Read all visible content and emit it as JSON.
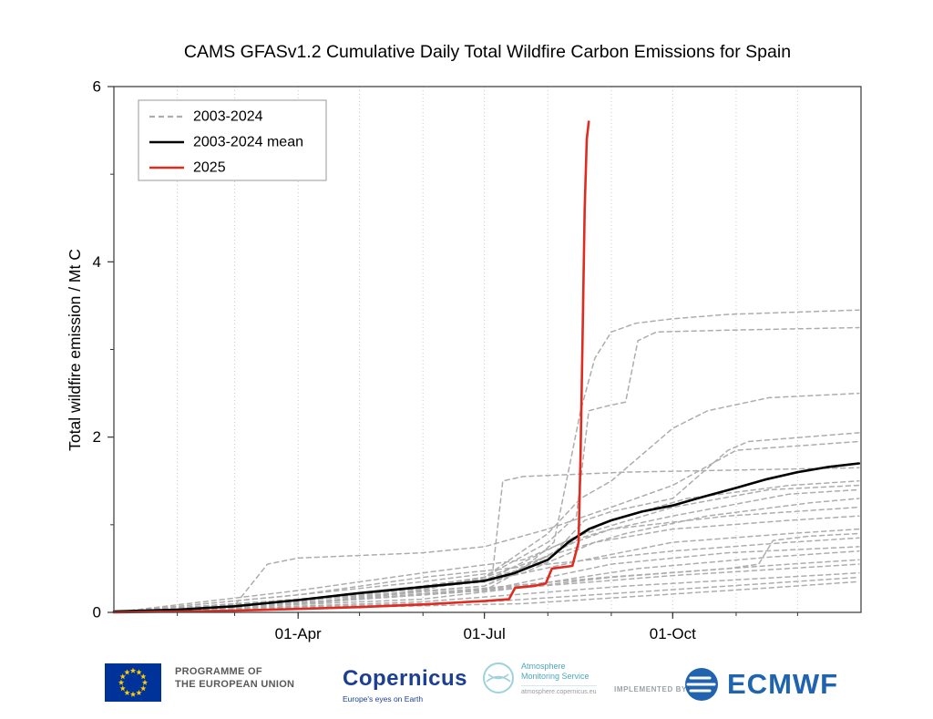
{
  "title": "CAMS GFASv1.2 Cumulative Daily Total Wildfire Carbon Emissions for Spain",
  "colors": {
    "gray_member": "#adadad",
    "mean_black": "#000000",
    "red_2025": "#e02b20",
    "grid": "#c9c9c9",
    "frame": "#444444",
    "eu_blue": "#003399",
    "eu_star_yellow": "#ffcc00",
    "copernicus_blue": "#1c3f94",
    "ams_teal": "#4ba7c0",
    "ecmwf_blue": "#2063af"
  },
  "chart_data": {
    "type": "line",
    "title": "CAMS GFASv1.2 Cumulative Daily Total Wildfire Carbon Emissions for Spain",
    "xlabel": "",
    "ylabel": "Total wildfire emission / Mt C",
    "ylim": [
      0,
      6
    ],
    "xlim_days": [
      0,
      365
    ],
    "yticks": [
      0,
      2,
      4,
      6
    ],
    "ytick_labels": [
      "0",
      "2",
      "4",
      "6"
    ],
    "yticks_minor": [
      1,
      3,
      5
    ],
    "xticks": [
      {
        "day": 90,
        "label": "01-Apr"
      },
      {
        "day": 181,
        "label": "01-Jul"
      },
      {
        "day": 273,
        "label": "01-Oct"
      }
    ],
    "month_start_days": [
      31,
      59,
      90,
      120,
      151,
      181,
      212,
      243,
      273,
      304,
      334
    ],
    "grid": "dotted vertical lines at each month start",
    "legend_position": "upper-left",
    "legend": [
      {
        "label": "2003-2024",
        "color": "#adadad",
        "dash": true,
        "width": 2.2
      },
      {
        "label": "2003-2024 mean",
        "color": "#000000",
        "dash": false,
        "width": 2.6
      },
      {
        "label": "2025",
        "color": "#e02b20",
        "dash": false,
        "width": 2.6
      }
    ],
    "series": [
      {
        "name": "member-1",
        "group": "2003-2024",
        "color": "#adadad",
        "dash": true,
        "width": 1.5,
        "points": [
          [
            0,
            0
          ],
          [
            60,
            0.05
          ],
          [
            90,
            0.12
          ],
          [
            120,
            0.2
          ],
          [
            150,
            0.28
          ],
          [
            181,
            0.38
          ],
          [
            200,
            0.5
          ],
          [
            215,
            0.8
          ],
          [
            222,
            1.6
          ],
          [
            228,
            2.3
          ],
          [
            235,
            2.9
          ],
          [
            243,
            3.2
          ],
          [
            255,
            3.3
          ],
          [
            273,
            3.35
          ],
          [
            300,
            3.4
          ],
          [
            364,
            3.45
          ]
        ]
      },
      {
        "name": "member-2",
        "group": "2003-2024",
        "color": "#adadad",
        "dash": true,
        "width": 1.5,
        "points": [
          [
            0,
            0
          ],
          [
            90,
            0.1
          ],
          [
            150,
            0.25
          ],
          [
            181,
            0.4
          ],
          [
            212,
            0.8
          ],
          [
            226,
            1.1
          ],
          [
            232,
            2.3
          ],
          [
            240,
            2.35
          ],
          [
            250,
            2.4
          ],
          [
            256,
            3.1
          ],
          [
            265,
            3.2
          ],
          [
            300,
            3.22
          ],
          [
            364,
            3.25
          ]
        ]
      },
      {
        "name": "member-3",
        "group": "2003-2024",
        "color": "#adadad",
        "dash": true,
        "width": 1.5,
        "points": [
          [
            0,
            0
          ],
          [
            90,
            0.15
          ],
          [
            151,
            0.3
          ],
          [
            181,
            0.4
          ],
          [
            212,
            0.9
          ],
          [
            228,
            1.3
          ],
          [
            243,
            1.5
          ],
          [
            273,
            2.1
          ],
          [
            290,
            2.3
          ],
          [
            320,
            2.45
          ],
          [
            364,
            2.5
          ]
        ]
      },
      {
        "name": "member-4",
        "group": "2003-2024",
        "color": "#adadad",
        "dash": true,
        "width": 1.5,
        "points": [
          [
            0,
            0
          ],
          [
            90,
            0.1
          ],
          [
            181,
            0.3
          ],
          [
            212,
            0.6
          ],
          [
            230,
            1.05
          ],
          [
            243,
            1.15
          ],
          [
            273,
            1.3
          ],
          [
            300,
            1.85
          ],
          [
            310,
            1.95
          ],
          [
            364,
            2.05
          ]
        ]
      },
      {
        "name": "member-5",
        "group": "2003-2024",
        "color": "#adadad",
        "dash": true,
        "width": 1.5,
        "points": [
          [
            0,
            0
          ],
          [
            59,
            0.08
          ],
          [
            75,
            0.55
          ],
          [
            90,
            0.62
          ],
          [
            151,
            0.68
          ],
          [
            181,
            0.75
          ],
          [
            212,
            0.95
          ],
          [
            243,
            1.2
          ],
          [
            273,
            1.45
          ],
          [
            304,
            1.85
          ],
          [
            364,
            1.95
          ]
        ]
      },
      {
        "name": "member-6",
        "group": "2003-2024",
        "color": "#adadad",
        "dash": true,
        "width": 1.5,
        "points": [
          [
            0,
            0
          ],
          [
            90,
            0.2
          ],
          [
            151,
            0.35
          ],
          [
            185,
            0.45
          ],
          [
            190,
            1.5
          ],
          [
            200,
            1.55
          ],
          [
            250,
            1.6
          ],
          [
            364,
            1.65
          ]
        ]
      },
      {
        "name": "member-7",
        "group": "2003-2024",
        "color": "#adadad",
        "dash": true,
        "width": 1.5,
        "points": [
          [
            0,
            0
          ],
          [
            120,
            0.2
          ],
          [
            181,
            0.35
          ],
          [
            215,
            0.75
          ],
          [
            243,
            1.05
          ],
          [
            280,
            1.3
          ],
          [
            330,
            1.45
          ],
          [
            364,
            1.5
          ]
        ]
      },
      {
        "name": "member-8",
        "group": "2003-2024",
        "color": "#adadad",
        "dash": true,
        "width": 1.5,
        "points": [
          [
            0,
            0
          ],
          [
            90,
            0.25
          ],
          [
            151,
            0.45
          ],
          [
            200,
            0.6
          ],
          [
            230,
            0.9
          ],
          [
            273,
            1.2
          ],
          [
            320,
            1.4
          ],
          [
            364,
            1.45
          ]
        ]
      },
      {
        "name": "member-9",
        "group": "2003-2024",
        "color": "#adadad",
        "dash": true,
        "width": 1.5,
        "points": [
          [
            0,
            0
          ],
          [
            100,
            0.15
          ],
          [
            181,
            0.3
          ],
          [
            225,
            0.8
          ],
          [
            243,
            0.95
          ],
          [
            273,
            1.1
          ],
          [
            330,
            1.35
          ],
          [
            364,
            1.4
          ]
        ]
      },
      {
        "name": "member-10",
        "group": "2003-2024",
        "color": "#adadad",
        "dash": true,
        "width": 1.5,
        "points": [
          [
            0,
            0
          ],
          [
            120,
            0.2
          ],
          [
            181,
            0.4
          ],
          [
            220,
            0.7
          ],
          [
            250,
            0.9
          ],
          [
            290,
            1.1
          ],
          [
            340,
            1.25
          ],
          [
            364,
            1.3
          ]
        ]
      },
      {
        "name": "member-11",
        "group": "2003-2024",
        "color": "#adadad",
        "dash": true,
        "width": 1.5,
        "points": [
          [
            0,
            0
          ],
          [
            90,
            0.1
          ],
          [
            181,
            0.25
          ],
          [
            228,
            0.85
          ],
          [
            243,
            0.95
          ],
          [
            300,
            1.1
          ],
          [
            364,
            1.2
          ]
        ]
      },
      {
        "name": "member-12",
        "group": "2003-2024",
        "color": "#adadad",
        "dash": true,
        "width": 1.5,
        "points": [
          [
            0,
            0
          ],
          [
            120,
            0.15
          ],
          [
            200,
            0.45
          ],
          [
            235,
            0.8
          ],
          [
            273,
            0.95
          ],
          [
            330,
            1.05
          ],
          [
            364,
            1.1
          ]
        ]
      },
      {
        "name": "member-13",
        "group": "2003-2024",
        "color": "#adadad",
        "dash": true,
        "width": 1.5,
        "points": [
          [
            0,
            0
          ],
          [
            90,
            0.15
          ],
          [
            181,
            0.35
          ],
          [
            230,
            0.6
          ],
          [
            273,
            0.8
          ],
          [
            330,
            0.9
          ],
          [
            364,
            0.95
          ]
        ]
      },
      {
        "name": "member-14",
        "group": "2003-2024",
        "color": "#adadad",
        "dash": true,
        "width": 1.5,
        "points": [
          [
            0,
            0
          ],
          [
            150,
            0.15
          ],
          [
            243,
            0.4
          ],
          [
            300,
            0.5
          ],
          [
            315,
            0.55
          ],
          [
            322,
            0.82
          ],
          [
            340,
            0.87
          ],
          [
            364,
            0.9
          ]
        ]
      },
      {
        "name": "member-15",
        "group": "2003-2024",
        "color": "#adadad",
        "dash": true,
        "width": 1.5,
        "points": [
          [
            0,
            0
          ],
          [
            90,
            0.2
          ],
          [
            151,
            0.4
          ],
          [
            212,
            0.55
          ],
          [
            273,
            0.7
          ],
          [
            330,
            0.8
          ],
          [
            364,
            0.85
          ]
        ]
      },
      {
        "name": "member-16",
        "group": "2003-2024",
        "color": "#adadad",
        "dash": true,
        "width": 1.5,
        "points": [
          [
            0,
            0
          ],
          [
            60,
            0.05
          ],
          [
            181,
            0.25
          ],
          [
            243,
            0.55
          ],
          [
            300,
            0.68
          ],
          [
            364,
            0.75
          ]
        ]
      },
      {
        "name": "member-17",
        "group": "2003-2024",
        "color": "#adadad",
        "dash": true,
        "width": 1.5,
        "points": [
          [
            0,
            0
          ],
          [
            90,
            0.1
          ],
          [
            200,
            0.3
          ],
          [
            256,
            0.5
          ],
          [
            320,
            0.63
          ],
          [
            364,
            0.7
          ]
        ]
      },
      {
        "name": "member-18",
        "group": "2003-2024",
        "color": "#adadad",
        "dash": true,
        "width": 1.5,
        "points": [
          [
            0,
            0
          ],
          [
            120,
            0.15
          ],
          [
            240,
            0.4
          ],
          [
            330,
            0.55
          ],
          [
            364,
            0.6
          ]
        ]
      },
      {
        "name": "member-19",
        "group": "2003-2024",
        "color": "#adadad",
        "dash": true,
        "width": 1.5,
        "points": [
          [
            0,
            0
          ],
          [
            90,
            0.1
          ],
          [
            181,
            0.25
          ],
          [
            273,
            0.42
          ],
          [
            364,
            0.55
          ]
        ]
      },
      {
        "name": "member-20",
        "group": "2003-2024",
        "color": "#adadad",
        "dash": true,
        "width": 1.5,
        "points": [
          [
            0,
            0
          ],
          [
            150,
            0.12
          ],
          [
            250,
            0.3
          ],
          [
            364,
            0.45
          ]
        ]
      },
      {
        "name": "member-21",
        "group": "2003-2024",
        "color": "#adadad",
        "dash": true,
        "width": 1.5,
        "points": [
          [
            0,
            0
          ],
          [
            181,
            0.12
          ],
          [
            300,
            0.3
          ],
          [
            364,
            0.4
          ]
        ]
      },
      {
        "name": "member-22",
        "group": "2003-2024",
        "color": "#adadad",
        "dash": true,
        "width": 1.5,
        "points": [
          [
            0,
            0
          ],
          [
            200,
            0.1
          ],
          [
            320,
            0.28
          ],
          [
            364,
            0.35
          ]
        ]
      },
      {
        "name": "2003-2024 mean",
        "group": "mean",
        "color": "#000000",
        "dash": false,
        "width": 2.6,
        "points": [
          [
            0,
            0.01
          ],
          [
            31,
            0.03
          ],
          [
            59,
            0.07
          ],
          [
            90,
            0.14
          ],
          [
            120,
            0.22
          ],
          [
            151,
            0.29
          ],
          [
            181,
            0.36
          ],
          [
            196,
            0.45
          ],
          [
            212,
            0.6
          ],
          [
            222,
            0.8
          ],
          [
            232,
            0.95
          ],
          [
            243,
            1.05
          ],
          [
            258,
            1.15
          ],
          [
            273,
            1.22
          ],
          [
            288,
            1.32
          ],
          [
            304,
            1.42
          ],
          [
            319,
            1.52
          ],
          [
            334,
            1.6
          ],
          [
            349,
            1.66
          ],
          [
            364,
            1.7
          ]
        ]
      },
      {
        "name": "2025",
        "group": "2025",
        "color": "#e02b20",
        "dash": false,
        "width": 2.6,
        "points": [
          [
            0,
            0
          ],
          [
            31,
            0.01
          ],
          [
            59,
            0.02
          ],
          [
            90,
            0.04
          ],
          [
            120,
            0.06
          ],
          [
            151,
            0.09
          ],
          [
            181,
            0.13
          ],
          [
            193,
            0.15
          ],
          [
            196,
            0.28
          ],
          [
            205,
            0.3
          ],
          [
            211,
            0.33
          ],
          [
            214,
            0.5
          ],
          [
            224,
            0.53
          ],
          [
            227,
            0.8
          ],
          [
            228,
            1.8
          ],
          [
            229,
            3.2
          ],
          [
            230,
            4.6
          ],
          [
            231,
            5.4
          ],
          [
            232,
            5.6
          ]
        ]
      }
    ]
  },
  "footer": {
    "eu": {
      "line1": "PROGRAMME OF",
      "line2": "THE EUROPEAN UNION"
    },
    "copernicus": {
      "wordmark": "Copernicus",
      "tagline": "Europe's eyes on Earth"
    },
    "ams": {
      "line1": "Atmosphere",
      "line2": "Monitoring Service",
      "url": "atmosphere.copernicus.eu"
    },
    "implemented_by": "IMPLEMENTED BY",
    "ecmwf": {
      "wordmark": "ECMWF"
    }
  }
}
